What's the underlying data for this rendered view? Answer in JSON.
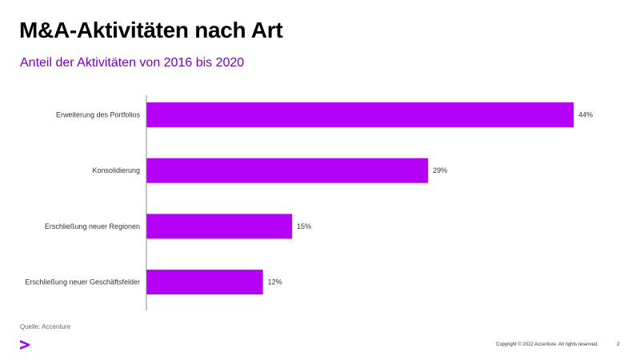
{
  "title": "M&A-Aktivitäten nach Art",
  "subtitle": "Anteil der Aktivitäten von 2016 bis 2020",
  "chart_data": {
    "type": "bar",
    "orientation": "horizontal",
    "categories": [
      "Erweiterung des Portfolios",
      "Konsolidierung",
      "Erschließung neuer Regionen",
      "Erschließung neuer Geschäftsfelder"
    ],
    "values": [
      44,
      29,
      15,
      12
    ],
    "data_labels": [
      "44%",
      "29%",
      "15%",
      "12%"
    ],
    "unit": "%",
    "xlim": [
      0,
      44
    ],
    "grid": false,
    "bar_color": "#b400f5"
  },
  "footer": {
    "source": "Quelle: Accenture",
    "copyright": "Copyright © 2022 Accenture. All rights reserved.",
    "page_number": "2",
    "logo_color": "#a100ff"
  }
}
